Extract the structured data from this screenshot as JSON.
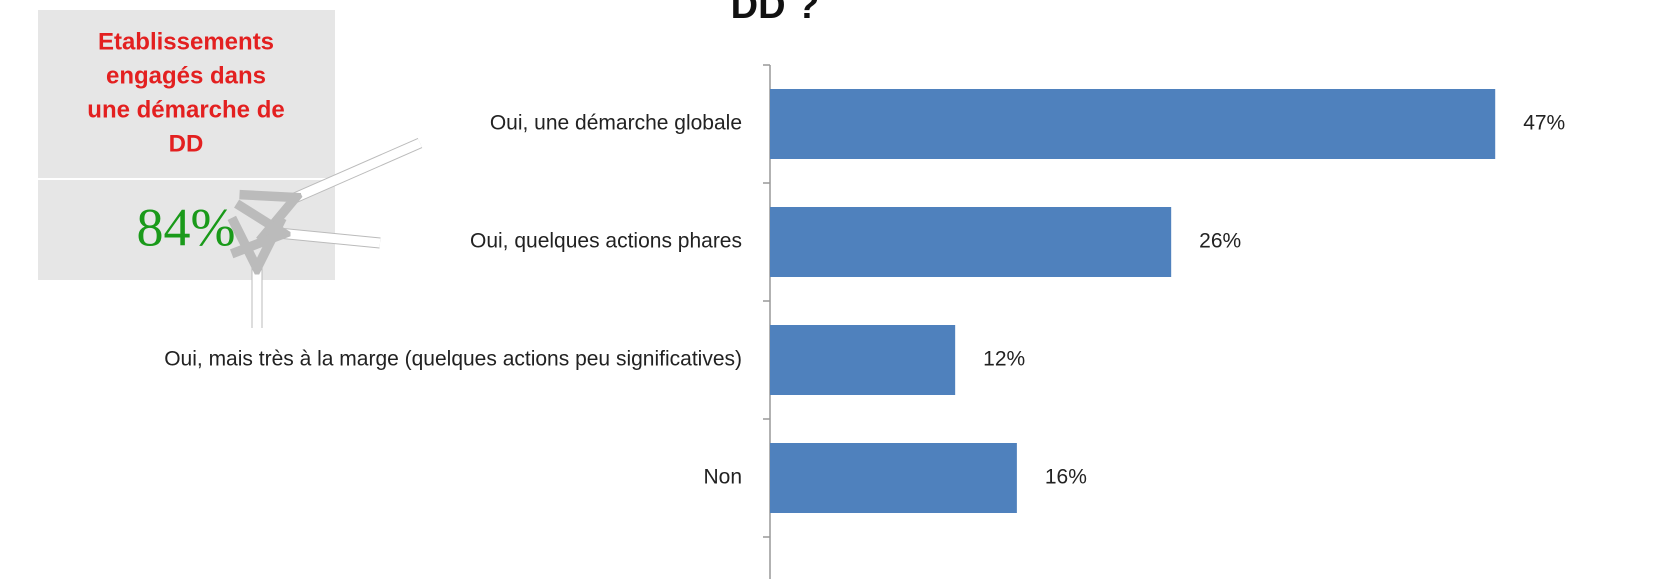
{
  "chart_data": {
    "type": "bar",
    "orientation": "horizontal",
    "title": "DD ?",
    "categories": [
      "Oui, une démarche globale",
      "Oui, quelques actions phares",
      "Oui, mais  très à la marge (quelques actions peu significatives)",
      "Non"
    ],
    "values": [
      47,
      26,
      12,
      16
    ],
    "value_labels": [
      "47%",
      "26%",
      "12%",
      "16%"
    ],
    "color": "#4f81bd"
  },
  "callout": {
    "lines": [
      "Etablissements",
      "engagés dans",
      "une démarche de",
      "DD"
    ],
    "total": "84%"
  }
}
